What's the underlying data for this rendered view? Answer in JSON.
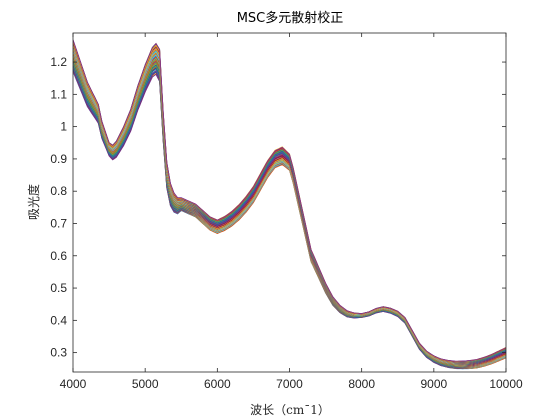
{
  "chart_data": {
    "type": "line",
    "title": "MSC多元散射校正",
    "xlabel": "波长（cm¯1）",
    "ylabel": "吸光度",
    "xlim": [
      4000,
      10000
    ],
    "ylim": [
      0.24,
      1.29
    ],
    "xticks": [
      4000,
      5000,
      6000,
      7000,
      8000,
      9000,
      10000
    ],
    "yticks": [
      0.3,
      0.4,
      0.5,
      0.6,
      0.7,
      0.8,
      0.9,
      1.0,
      1.1,
      1.2
    ],
    "ytick_labels": [
      "0.3",
      "0.4",
      "0.5",
      "0.6",
      "0.7",
      "0.8",
      "0.9",
      "1",
      "1.1",
      "1.2"
    ],
    "grid": false,
    "legend": "none",
    "series_count": 60,
    "series_colors": [
      "#0072BD",
      "#D95319",
      "#EDB120",
      "#7E2F8E",
      "#77AC30",
      "#4DBEEE",
      "#A2142F"
    ],
    "mean_spectrum": {
      "x": [
        4000,
        4100,
        4200,
        4300,
        4350,
        4400,
        4500,
        4550,
        4600,
        4700,
        4800,
        4900,
        5000,
        5100,
        5150,
        5200,
        5250,
        5300,
        5350,
        5400,
        5450,
        5500,
        5600,
        5700,
        5800,
        5900,
        6000,
        6100,
        6200,
        6300,
        6400,
        6500,
        6600,
        6700,
        6800,
        6900,
        7000,
        7050,
        7100,
        7200,
        7300,
        7400,
        7500,
        7600,
        7700,
        7800,
        7900,
        8000,
        8100,
        8200,
        8300,
        8400,
        8500,
        8600,
        8700,
        8800,
        8900,
        9000,
        9100,
        9200,
        9300,
        9400,
        9500,
        9600,
        9700,
        9800,
        9900,
        10000
      ],
      "y": [
        1.22,
        1.16,
        1.1,
        1.06,
        1.04,
        0.99,
        0.93,
        0.92,
        0.93,
        0.97,
        1.02,
        1.09,
        1.15,
        1.2,
        1.21,
        1.19,
        1.0,
        0.85,
        0.79,
        0.765,
        0.755,
        0.76,
        0.75,
        0.74,
        0.72,
        0.7,
        0.69,
        0.7,
        0.715,
        0.735,
        0.76,
        0.79,
        0.83,
        0.87,
        0.9,
        0.91,
        0.89,
        0.85,
        0.8,
        0.7,
        0.6,
        0.55,
        0.5,
        0.46,
        0.435,
        0.42,
        0.415,
        0.415,
        0.42,
        0.43,
        0.435,
        0.43,
        0.42,
        0.4,
        0.36,
        0.32,
        0.295,
        0.28,
        0.27,
        0.265,
        0.262,
        0.262,
        0.263,
        0.266,
        0.272,
        0.28,
        0.29,
        0.3
      ]
    },
    "spread": {
      "x": [
        4000,
        4500,
        5200,
        5500,
        6000,
        6900,
        7500,
        8000,
        9000,
        10000
      ],
      "half_width": [
        0.05,
        0.02,
        0.05,
        0.02,
        0.02,
        0.025,
        0.015,
        0.006,
        0.01,
        0.015
      ]
    }
  }
}
